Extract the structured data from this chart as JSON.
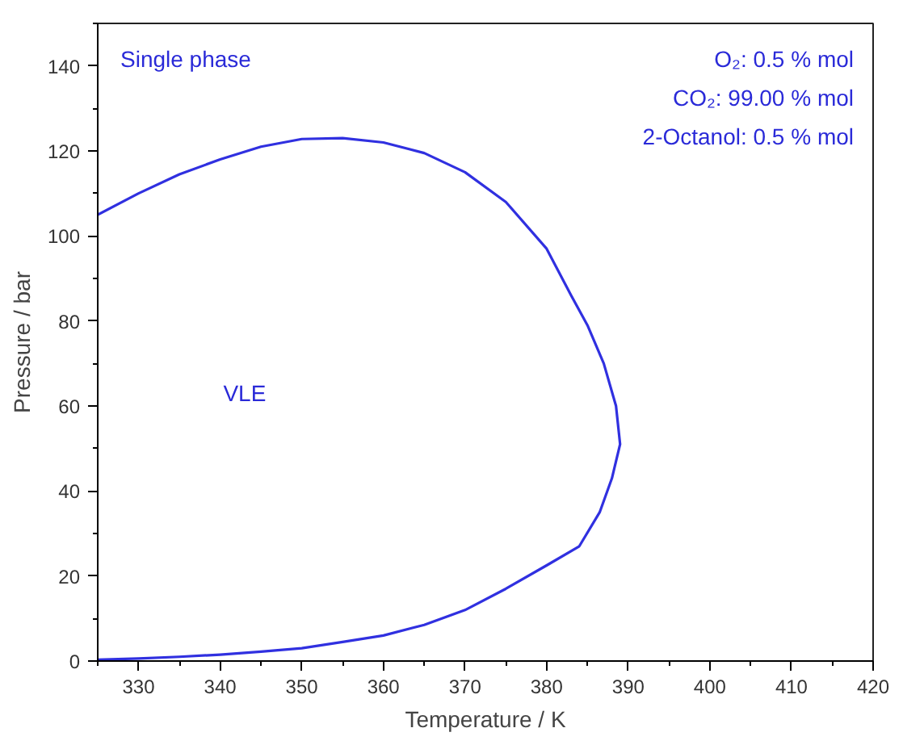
{
  "chart_data": {
    "type": "line",
    "xlabel": "Temperature / K",
    "ylabel": "Pressure / bar",
    "xlim": [
      325,
      420
    ],
    "xticks": [
      330,
      340,
      350,
      360,
      370,
      380,
      390,
      400,
      410,
      420
    ],
    "ylim": [
      0,
      150
    ],
    "yticks": [
      0,
      20,
      40,
      60,
      80,
      100,
      120,
      140
    ],
    "series": [
      {
        "color": "#3030e0",
        "x": [
          325,
          330,
          335,
          340,
          345,
          350,
          355,
          360,
          365,
          370,
          375,
          380,
          383,
          385,
          387,
          388.5,
          389,
          388,
          386.5,
          384,
          380,
          375,
          370,
          365,
          360,
          355,
          350,
          345,
          340,
          335,
          330,
          325
        ],
        "values": [
          105,
          110,
          114.5,
          118,
          121,
          122.8,
          123,
          122,
          119.5,
          115,
          108,
          97,
          86,
          79,
          70,
          60,
          51,
          43,
          35,
          27,
          22.5,
          17,
          12,
          8.5,
          6,
          4.5,
          3,
          2.2,
          1.5,
          1,
          0.6,
          0.3
        ]
      }
    ],
    "annotations": [
      "Single phase",
      "VLE",
      "O₂: 0.5 % mol",
      "CO₂: 99.00 % mol",
      "2-Octanol: 0.5 % mol"
    ]
  }
}
